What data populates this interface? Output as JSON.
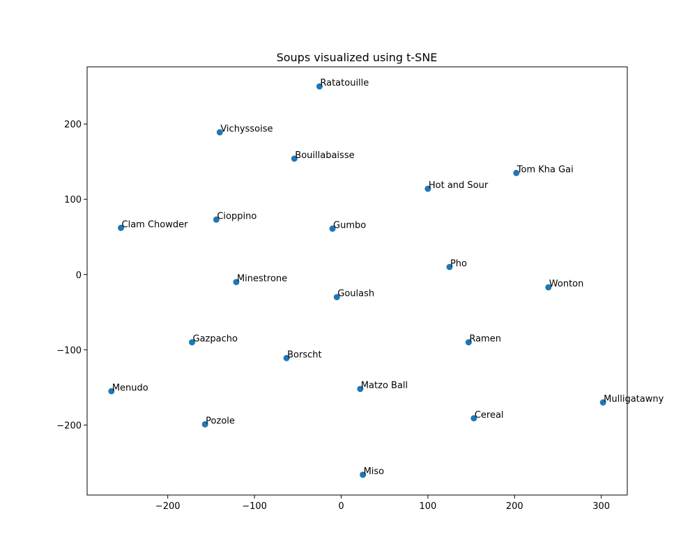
{
  "chart_data": {
    "type": "scatter",
    "title": "Soups visualized using t-SNE",
    "xlabel": "",
    "ylabel": "",
    "xlim": [
      -293,
      330
    ],
    "ylim": [
      -293,
      276
    ],
    "xticks": [
      -200,
      -100,
      0,
      100,
      200,
      300
    ],
    "yticks": [
      -200,
      -100,
      0,
      100,
      200
    ],
    "xtick_labels": [
      "−200",
      "−100",
      "0",
      "100",
      "200",
      "300"
    ],
    "ytick_labels": [
      "−200",
      "−100",
      "0",
      "100",
      "200"
    ],
    "grid": false,
    "marker_color": "#1f77b4",
    "points": [
      {
        "label": "Ratatouille",
        "x": -25,
        "y": 250
      },
      {
        "label": "Vichyssoise",
        "x": -140,
        "y": 189
      },
      {
        "label": "Bouillabaisse",
        "x": -54,
        "y": 154
      },
      {
        "label": "Tom Kha Gai",
        "x": 202,
        "y": 135
      },
      {
        "label": "Hot and Sour",
        "x": 100,
        "y": 114
      },
      {
        "label": "Cioppino",
        "x": -144,
        "y": 73
      },
      {
        "label": "Clam Chowder",
        "x": -254,
        "y": 62
      },
      {
        "label": "Gumbo",
        "x": -10,
        "y": 61
      },
      {
        "label": "Pho",
        "x": 125,
        "y": 10
      },
      {
        "label": "Minestrone",
        "x": -121,
        "y": -10
      },
      {
        "label": "Wonton",
        "x": 239,
        "y": -17
      },
      {
        "label": "Goulash",
        "x": -5,
        "y": -30
      },
      {
        "label": "Gazpacho",
        "x": -172,
        "y": -90
      },
      {
        "label": "Ramen",
        "x": 147,
        "y": -90
      },
      {
        "label": "Borscht",
        "x": -63,
        "y": -111
      },
      {
        "label": "Matzo Ball",
        "x": 22,
        "y": -152
      },
      {
        "label": "Menudo",
        "x": -265,
        "y": -155
      },
      {
        "label": "Mulligatawny",
        "x": 302,
        "y": -170
      },
      {
        "label": "Cereal",
        "x": 153,
        "y": -191
      },
      {
        "label": "Pozole",
        "x": -157,
        "y": -199
      },
      {
        "label": "Miso",
        "x": 25,
        "y": -266
      }
    ]
  }
}
